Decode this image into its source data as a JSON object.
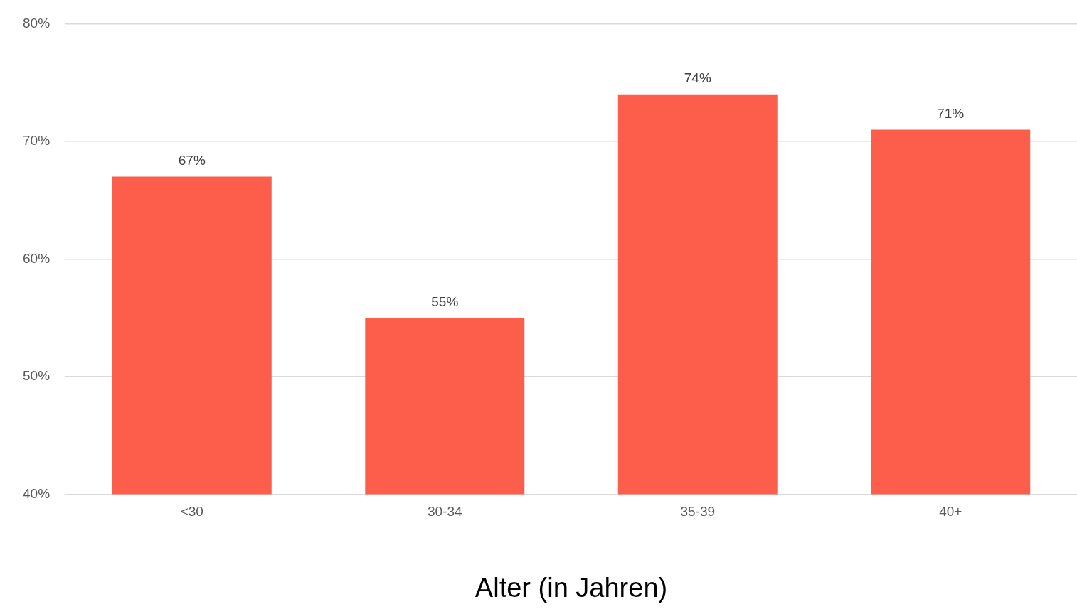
{
  "chart_data": {
    "type": "bar",
    "xlabel": "Alter (in Jahren)",
    "categories": [
      "<30",
      "30-34",
      "35-39",
      "40+"
    ],
    "values": [
      67,
      55,
      74,
      71
    ],
    "value_labels": [
      "67%",
      "55%",
      "74%",
      "71%"
    ],
    "color": "#fd5e4b",
    "ylim": [
      40,
      80
    ],
    "yticks": [
      {
        "value": 40,
        "label": "40%"
      },
      {
        "value": 50,
        "label": "50%"
      },
      {
        "value": 60,
        "label": "60%"
      },
      {
        "value": 70,
        "label": "70%"
      },
      {
        "value": 80,
        "label": "80%"
      }
    ],
    "grid": "y",
    "legend": false
  }
}
